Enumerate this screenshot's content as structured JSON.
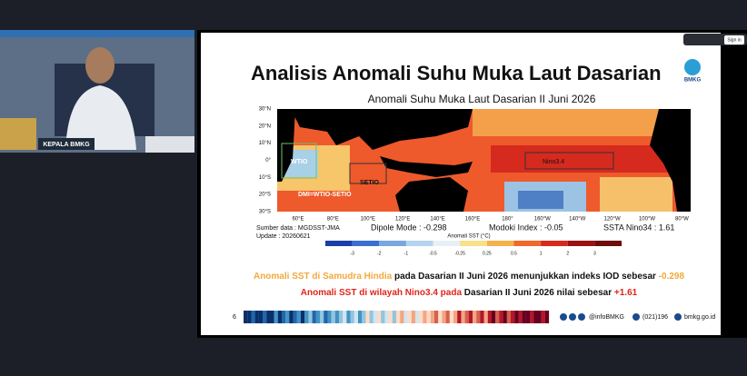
{
  "video": {
    "caption": "KEPALA BMKG"
  },
  "topbar": {
    "sign_in": "Sign in"
  },
  "slide": {
    "title": "Analisis Anomali Suhu Muka Laut Dasarian",
    "logo": "BMKG",
    "map": {
      "title": "Anomali Suhu Muka Laut Dasarian II Juni 2026",
      "lat_labels": [
        "30°N",
        "20°N",
        "10°N",
        "0°",
        "10°S",
        "20°S",
        "30°S"
      ],
      "lon_labels": [
        "60°E",
        "80°E",
        "100°E",
        "120°E",
        "140°E",
        "160°E",
        "180°",
        "160°W",
        "140°W",
        "120°W",
        "100°W",
        "80°W"
      ],
      "regions": [
        "WTIO",
        "SETIO",
        "DMI=WTIO-SETIO",
        "Nino3.4"
      ]
    },
    "source": "Sumber data : MGDSST-JMA",
    "update": "Update : 20260621",
    "dipole": "Dipole Mode : -0.298",
    "modoki": "Modoki Index : -0.05",
    "nino": "SSTA Nino34 : 1.61",
    "colorbar": {
      "label": "Anomali SST (°C)",
      "ticks": [
        "-3",
        "-2",
        "-1",
        "-0.5",
        "-0.25",
        "0.25",
        "0.5",
        "1",
        "2",
        "3"
      ]
    },
    "line1": [
      "Anomali SST di Samudra Hindia",
      " pada Dasarian II Juni 2026 menunjukkan indeks IOD sebesar ",
      "-0.298"
    ],
    "line2": [
      "Anomali SST di wilayah Nino3.4 pada",
      " Dasarian II Juni 2026 nilai sebesar ",
      "+1.61"
    ],
    "footer": {
      "page": "6",
      "social": "@infoBMKG",
      "phone": "(021)196",
      "web": "bmkg.go.id"
    }
  }
}
